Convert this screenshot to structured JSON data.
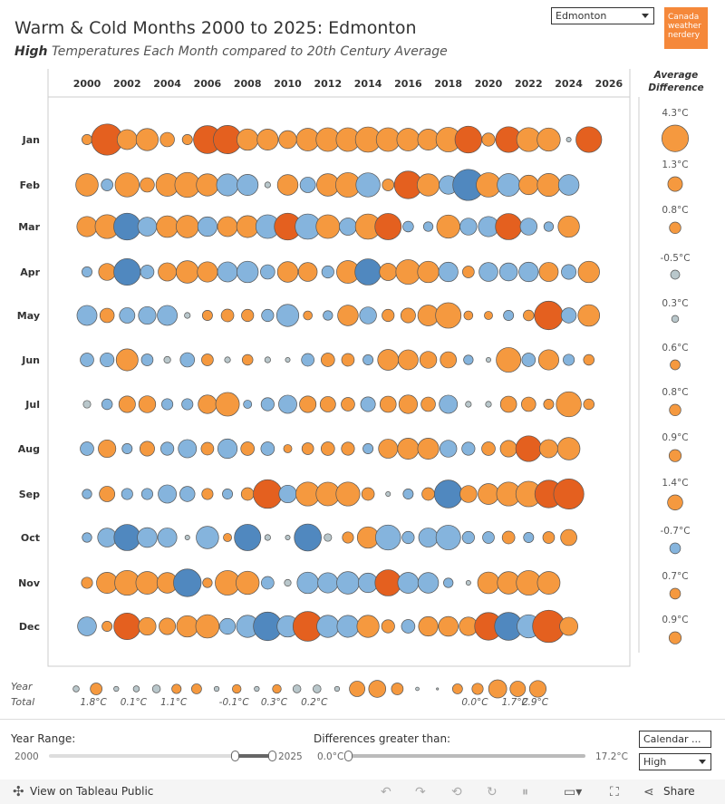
{
  "header": {
    "title": "Warm & Cold Months 2000 to 2025: Edmonton",
    "subtitle_bold": "High",
    "subtitle_rest": " Temperatures Each Month compared to 20th Century Average"
  },
  "city_select": {
    "value": "Edmonton"
  },
  "logo": {
    "lines": [
      "Canada",
      "weather",
      "nerdery"
    ]
  },
  "avg_panel": {
    "title_line1": "Average",
    "title_line2": "Difference",
    "values": [
      "4.3°C",
      "1.3°C",
      "0.8°C",
      "-0.5°C",
      "0.3°C",
      "0.6°C",
      "0.8°C",
      "0.9°C",
      "1.4°C",
      "-0.7°C",
      "0.7°C",
      "0.9°C"
    ]
  },
  "totals_row": {
    "label_line1": "Year",
    "label_line2": "Total",
    "labels": [
      {
        "year": 2001,
        "text": "1.8°C"
      },
      {
        "year": 2003,
        "text": "0.1°C"
      },
      {
        "year": 2005,
        "text": "1.1°C"
      },
      {
        "year": 2008,
        "text": "-0.1°C"
      },
      {
        "year": 2010,
        "text": "0.3°C"
      },
      {
        "year": 2012,
        "text": "0.2°C"
      },
      {
        "year": 2020,
        "text": "0.0°C"
      },
      {
        "year": 2022,
        "text": "1.7°C"
      },
      {
        "year": 2023,
        "text": "2.9°C"
      }
    ],
    "values": [
      -0.3,
      1.1,
      0.2,
      -0.3,
      0.5,
      0.7,
      0.8,
      -0.2,
      0.6,
      -0.2,
      0.6,
      0.5,
      0.5,
      -0.2,
      1.9,
      2.3,
      1.1,
      -0.1,
      0.0,
      0.8,
      1.0,
      2.6,
      1.9,
      2.2
    ]
  },
  "controls": {
    "year_range_label": "Year Range:",
    "year_min": "2000",
    "year_max": "2025",
    "diff_label": "Differences greater than:",
    "diff_min": "0.0°C",
    "diff_max": "17.2°C",
    "dropdown1": "Calendar ...",
    "dropdown2": "High"
  },
  "footer": {
    "tableau": "View on Tableau Public",
    "share": "Share"
  },
  "colors": {
    "warm": "#f5993f",
    "warm_strong": "#e4601f",
    "cold": "#85b4dd",
    "cold_strong": "#5088bf",
    "neutral": "#b9c7cb"
  },
  "chart_data": {
    "type": "scatter",
    "encoding": "bubble: size = |difference from 20th century average (°C)|, color orange = warmer, blue = colder",
    "x_ticks": [
      2000,
      2002,
      2004,
      2006,
      2008,
      2010,
      2012,
      2014,
      2016,
      2018,
      2020,
      2022,
      2024,
      2026
    ],
    "xlim": [
      1998.8,
      2026.9
    ],
    "months": [
      "Jan",
      "Feb",
      "Mar",
      "Apr",
      "May",
      "Jun",
      "Jul",
      "Aug",
      "Sep",
      "Oct",
      "Nov",
      "Dec"
    ],
    "start_year": 2000,
    "series": [
      {
        "name": "Jan",
        "values": [
          0.9,
          8.5,
          3.5,
          4.3,
          1.8,
          0.9,
          6.8,
          7.0,
          4.0,
          3.9,
          2.8,
          4.5,
          4.9,
          4.9,
          5.6,
          4.9,
          4.5,
          3.9,
          5.3,
          6.3,
          1.5,
          5.8,
          5.0,
          4.7,
          0.2,
          5.8
        ]
      },
      {
        "name": "Feb",
        "values": [
          4.4,
          -1.2,
          5.1,
          1.8,
          4.5,
          5.5,
          4.3,
          -4.2,
          -3.9,
          0.3,
          3.7,
          -2.1,
          4.4,
          5.3,
          -5.1,
          1.2,
          6.7,
          4.3,
          -3.0,
          -8.5,
          5.2,
          -4.5,
          3.3,
          4.6,
          -3.7
        ]
      },
      {
        "name": "Mar",
        "values": [
          3.6,
          5.0,
          -6.3,
          -3.1,
          4.1,
          4.4,
          -3.3,
          3.5,
          4.2,
          -4.9,
          6.3,
          -5.6,
          4.9,
          -2.6,
          5.6,
          6.1,
          -1.0,
          -0.8,
          4.7,
          -2.5,
          -3.6,
          6.0,
          -2.5,
          -0.8,
          4.0
        ]
      },
      {
        "name": "Apr",
        "values": [
          -0.9,
          2.5,
          -6.2,
          -1.6,
          2.9,
          4.4,
          3.6,
          -3.5,
          -4.0,
          -1.8,
          3.7,
          3.1,
          -1.3,
          4.5,
          -6.0,
          2.6,
          5.3,
          4.0,
          -3.3,
          1.2,
          -3.1,
          -2.8,
          -3.3,
          3.2,
          -1.9,
          4.0
        ]
      },
      {
        "name": "May",
        "values": [
          -3.5,
          1.8,
          -2.1,
          -2.7,
          -3.5,
          0.3,
          0.9,
          1.4,
          1.3,
          -1.3,
          -4.3,
          0.7,
          -0.8,
          3.7,
          -2.5,
          1.3,
          1.9,
          3.8,
          5.7,
          0.7,
          0.6,
          -0.9,
          1.0,
          7.1,
          -2.0,
          4.1
        ]
      },
      {
        "name": "Jun",
        "values": [
          -1.6,
          -1.7,
          4.2,
          -1.2,
          0.4,
          -1.8,
          1.2,
          0.3,
          1.0,
          0.3,
          0.2,
          -1.4,
          1.6,
          1.4,
          -0.9,
          3.8,
          3.5,
          2.5,
          2.3,
          -0.8,
          0.2,
          5.3,
          -1.6,
          3.6,
          -1.1,
          1.0
        ]
      },
      {
        "name": "Jul",
        "values": [
          -0.5,
          -1.0,
          2.4,
          2.5,
          -1.1,
          -1.1,
          3.0,
          4.9,
          -0.6,
          -1.5,
          -2.9,
          2.4,
          2.1,
          1.6,
          -1.9,
          2.3,
          3.0,
          1.8,
          -2.9,
          0.3,
          -0.3,
          2.3,
          1.8,
          0.9,
          5.5,
          1.0
        ]
      },
      {
        "name": "Aug",
        "values": [
          -1.6,
          2.7,
          -0.9,
          1.9,
          -1.5,
          -2.9,
          1.4,
          -3.3,
          1.6,
          -1.6,
          0.6,
          1.2,
          1.6,
          1.5,
          -0.9,
          3.2,
          3.9,
          3.9,
          -2.5,
          -1.5,
          1.6,
          2.4,
          5.8,
          2.9,
          4.4
        ]
      },
      {
        "name": "Sep",
        "values": [
          -0.8,
          2.1,
          -1.1,
          -1.1,
          -2.9,
          -2.0,
          1.1,
          -0.9,
          1.4,
          7.2,
          -2.7,
          5.0,
          4.9,
          5.0,
          1.4,
          0.2,
          -0.9,
          1.4,
          -6.8,
          2.5,
          3.8,
          5.0,
          5.7,
          6.7,
          8.0
        ]
      },
      {
        "name": "Oct",
        "values": [
          -0.8,
          -3.1,
          -6.0,
          -3.4,
          -3.2,
          0.2,
          -4.4,
          0.6,
          -6.1,
          -0.3,
          0.2,
          -6.4,
          0.5,
          1.1,
          4.0,
          -5.5,
          -1.3,
          -3.2,
          -5.3,
          -1.3,
          -1.2,
          1.4,
          -0.9,
          1.2,
          2.3
        ]
      },
      {
        "name": "Nov",
        "values": [
          1.1,
          3.9,
          5.4,
          4.5,
          3.7,
          -6.7,
          0.8,
          5.3,
          4.7,
          -1.4,
          0.4,
          -4.0,
          -3.6,
          -4.4,
          -3.3,
          6.0,
          -3.8,
          -3.7,
          -0.8,
          0.2,
          4.1,
          4.4,
          5.3,
          4.5
        ]
      },
      {
        "name": "Dec",
        "values": [
          -3.1,
          0.9,
          6.2,
          2.7,
          2.4,
          4.0,
          4.8,
          -2.2,
          -4.3,
          -7.1,
          -4.0,
          7.7,
          -4.3,
          -4.2,
          4.3,
          1.5,
          -1.6,
          3.3,
          3.4,
          3.0,
          6.7,
          -6.8,
          -4.7,
          9.1,
          2.9
        ]
      }
    ]
  }
}
